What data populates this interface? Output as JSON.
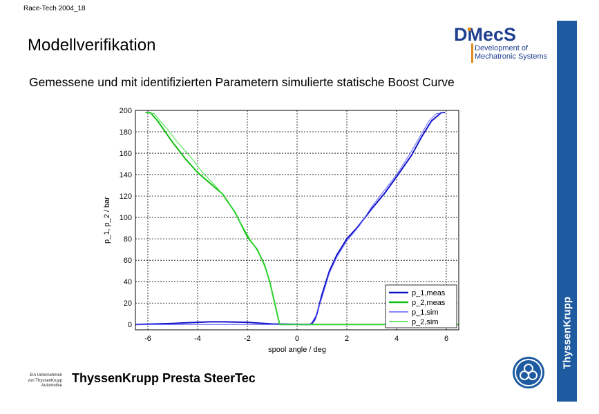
{
  "header_tag": "Race-Tech 2004_18",
  "title": "Modellverifikation",
  "subtitle": "Gemessene und mit identifizierten Parametern simulierte statische Boost Curve",
  "logo": {
    "text": "DMecS",
    "line1": "Development of",
    "line2": "Mechatronic Systems",
    "color": "#1f3f8f"
  },
  "side_bar": {
    "text": "ThyssenKrupp",
    "color": "#1d5aa0"
  },
  "footer": {
    "note": [
      "Ein Unternehmen",
      "von ThyssenKrupp",
      "Automotive"
    ],
    "company": "ThyssenKrupp Presta SteerTec"
  },
  "chart_data": {
    "type": "line",
    "xlabel": "spool angle / deg",
    "ylabel": "p_1, p_2 / bar",
    "xlim": [
      -6.5,
      6.5
    ],
    "ylim": [
      -5,
      200
    ],
    "xticks": [
      -6,
      -4,
      -2,
      0,
      2,
      4,
      6
    ],
    "yticks": [
      0,
      20,
      40,
      60,
      80,
      100,
      120,
      140,
      160,
      180,
      200
    ],
    "grid": true,
    "legend": "bottom-right",
    "series": [
      {
        "name": "p_1,meas",
        "color": "#1010c8",
        "width": 2,
        "x": [
          -6.5,
          -5,
          -4,
          -3.5,
          -3,
          -2,
          -1,
          0.4,
          0.5,
          0.6,
          0.7,
          0.8,
          1.0,
          1.3,
          1.6,
          2.0,
          2.4,
          3.0,
          3.5,
          4.0,
          4.3,
          4.6,
          5.0,
          5.4,
          5.8,
          5.95
        ],
        "y": [
          0,
          1,
          2,
          2.5,
          2.5,
          2,
          0.5,
          0,
          0,
          1,
          4,
          10,
          28,
          50,
          65,
          80,
          90,
          108,
          122,
          138,
          148,
          158,
          175,
          190,
          198,
          198
        ]
      },
      {
        "name": "p_2,meas",
        "color": "#10c010",
        "width": 2,
        "x": [
          -6.1,
          -5.9,
          -5.6,
          -5.3,
          -5.0,
          -4.5,
          -4.0,
          -3.5,
          -3.0,
          -2.5,
          -2.0,
          -1.6,
          -1.3,
          -1.1,
          -0.95,
          -0.85,
          -0.7,
          -0.5,
          0.5,
          6.5
        ],
        "y": [
          198,
          198,
          190,
          180,
          170,
          155,
          142,
          132,
          122,
          105,
          82,
          70,
          55,
          40,
          25,
          15,
          0,
          0,
          0,
          0
        ]
      },
      {
        "name": "p_1,sim",
        "color": "#6060ff",
        "width": 1,
        "x": [
          -6.5,
          0.5,
          0.6,
          0.75,
          1.0,
          1.3,
          1.6,
          2.0,
          2.5,
          3.0,
          3.5,
          4.0,
          4.5,
          5.0,
          5.3,
          5.6,
          5.9
        ],
        "y": [
          0,
          0,
          2,
          8,
          25,
          48,
          63,
          78,
          92,
          110,
          125,
          140,
          158,
          178,
          190,
          197,
          198
        ]
      },
      {
        "name": "p_2,sim",
        "color": "#40e040",
        "width": 1,
        "x": [
          -6.1,
          -5.75,
          -5.5,
          -5.2,
          -4.8,
          -4.3,
          -3.8,
          -3.3,
          -2.8,
          -2.3,
          -1.9,
          -1.5,
          -1.2,
          -1.0,
          -0.85,
          -0.7,
          6.5
        ],
        "y": [
          198,
          197,
          190,
          182,
          170,
          157,
          142,
          130,
          116,
          96,
          80,
          65,
          48,
          30,
          15,
          0,
          0
        ]
      }
    ]
  }
}
